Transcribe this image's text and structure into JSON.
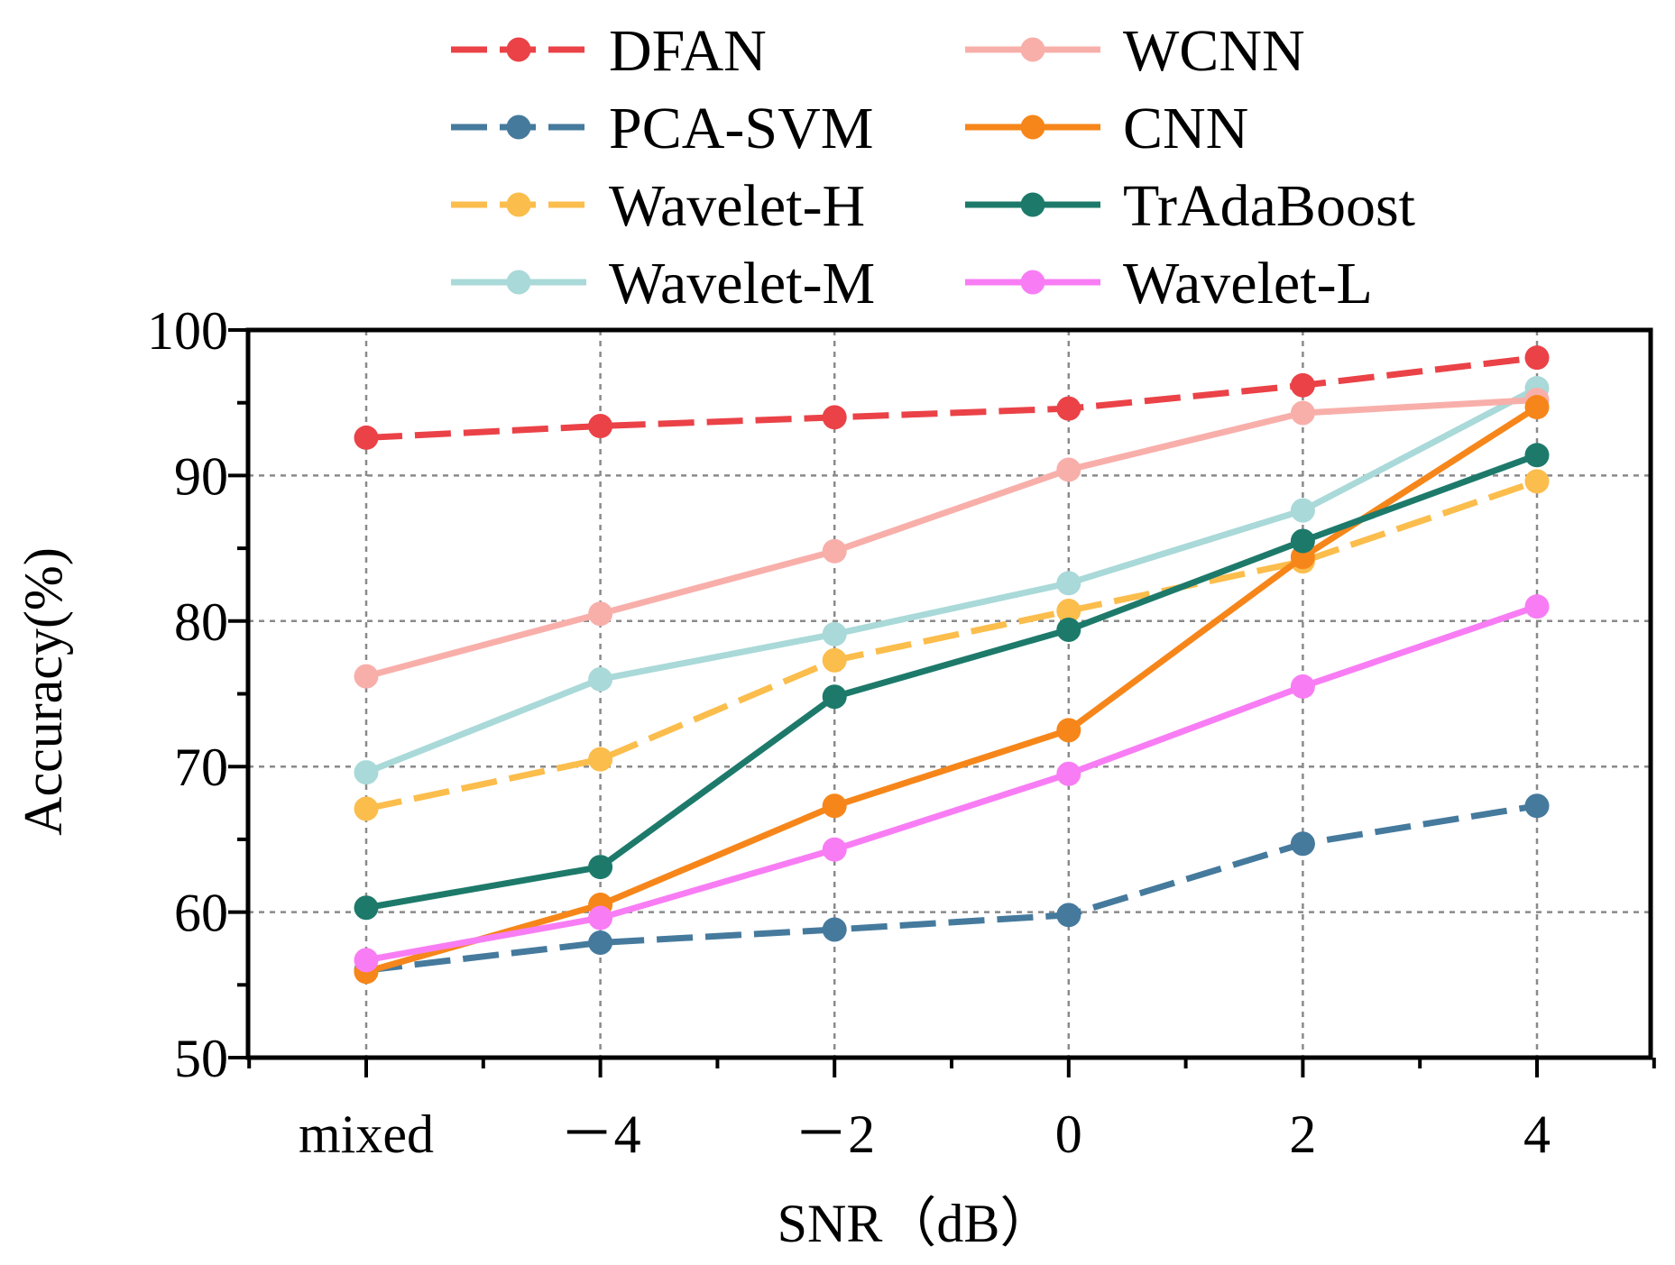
{
  "chart_data": {
    "type": "line",
    "title": "",
    "xlabel": "SNR（dB）",
    "ylabel": "Accuracy(%)",
    "categories": [
      "mixed",
      "－4",
      "－2",
      "0",
      "2",
      "4"
    ],
    "ylim": [
      50,
      100
    ],
    "yticks": [
      "50",
      "60",
      "70",
      "80",
      "90",
      "100"
    ],
    "grid": true,
    "legend_position": "top",
    "series": [
      {
        "name": "DFAN",
        "color": "#ea4247",
        "dashed": true,
        "values": [
          92.6,
          93.4,
          94.0,
          94.6,
          96.2,
          98.1
        ]
      },
      {
        "name": "PCA-SVM",
        "color": "#457a9d",
        "dashed": true,
        "values": [
          56.0,
          57.9,
          58.8,
          59.8,
          64.7,
          67.3
        ]
      },
      {
        "name": "Wavelet-H",
        "color": "#fbbd4c",
        "dashed": true,
        "values": [
          67.1,
          70.5,
          77.3,
          80.7,
          84.1,
          89.6
        ]
      },
      {
        "name": "Wavelet-M",
        "color": "#a9d9d8",
        "dashed": false,
        "values": [
          69.6,
          76.0,
          79.1,
          82.6,
          87.6,
          96.0
        ]
      },
      {
        "name": "WCNN",
        "color": "#f8afaa",
        "dashed": false,
        "values": [
          76.2,
          80.5,
          84.8,
          90.4,
          94.3,
          95.2
        ]
      },
      {
        "name": "CNN",
        "color": "#f6861a",
        "dashed": false,
        "values": [
          55.9,
          60.5,
          67.3,
          72.5,
          84.4,
          94.7
        ]
      },
      {
        "name": "TrAdaBoost",
        "color": "#1d7a6b",
        "dashed": false,
        "values": [
          60.3,
          63.1,
          74.8,
          79.4,
          85.5,
          91.4
        ]
      },
      {
        "name": "Wavelet-L",
        "color": "#f87df4",
        "dashed": false,
        "values": [
          56.7,
          59.6,
          64.3,
          69.5,
          75.5,
          81.0
        ]
      }
    ]
  }
}
